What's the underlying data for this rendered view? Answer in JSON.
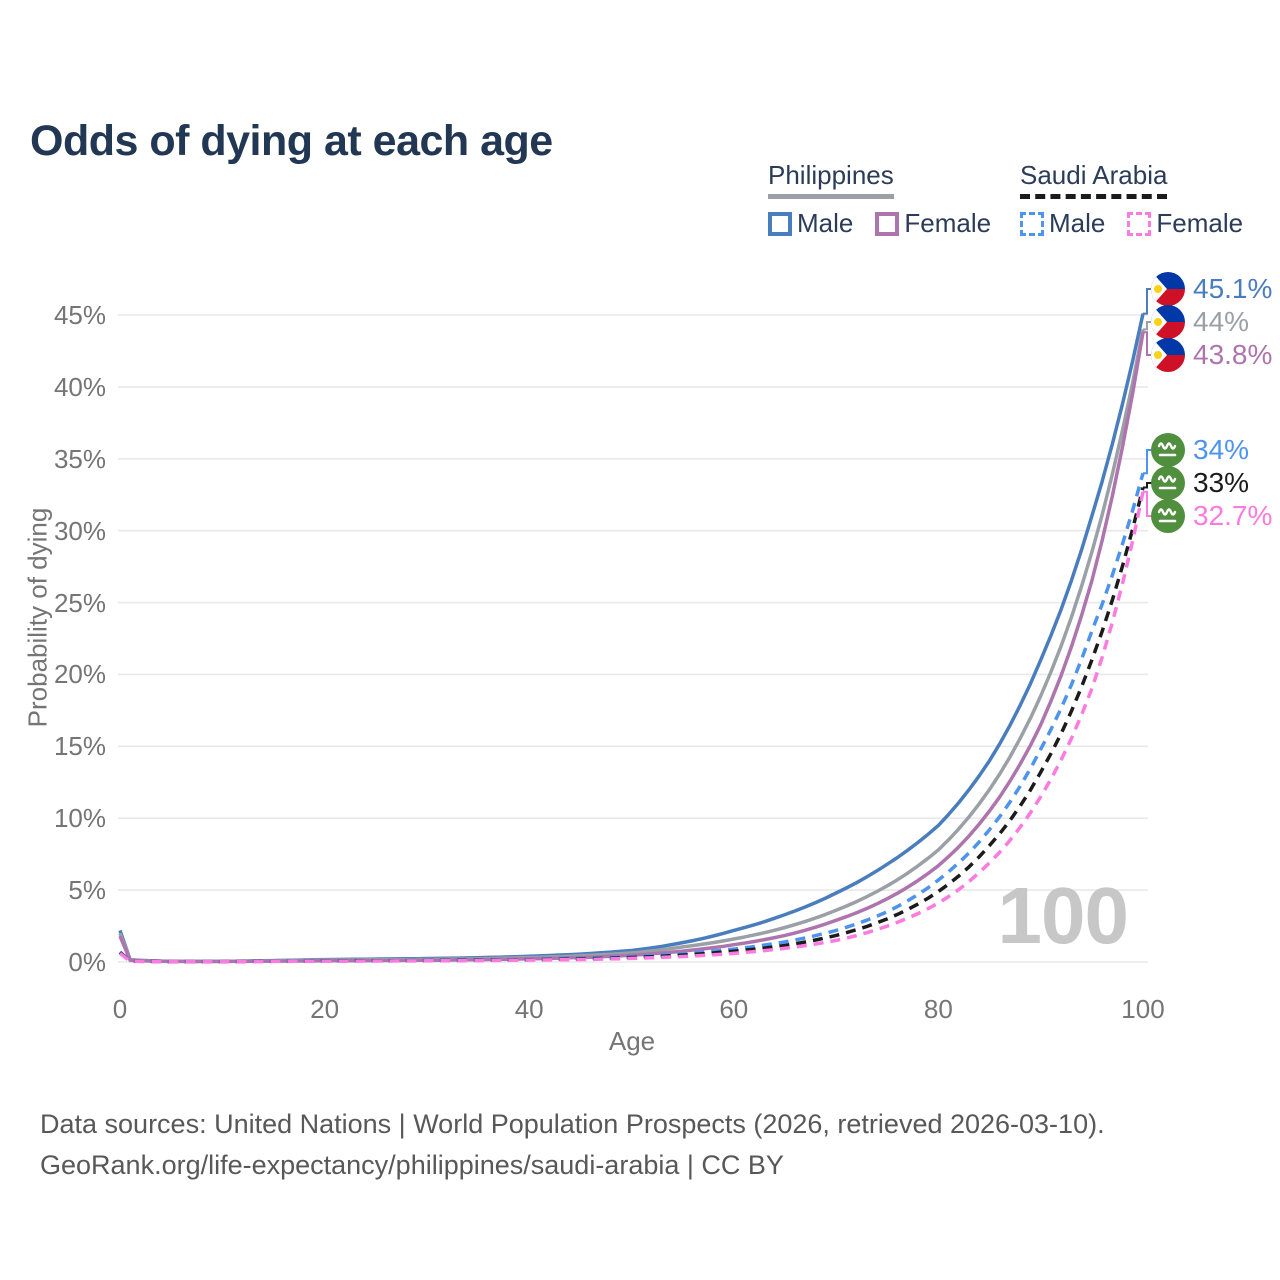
{
  "title": "Odds of dying at each age",
  "legend": {
    "groups": [
      {
        "country": "Philippines",
        "line_style": "solid",
        "underline_color": "#9aa0a6",
        "items": [
          {
            "label": "Male",
            "color": "#4a7dbe",
            "dashed": false
          },
          {
            "label": "Female",
            "color": "#ae74ae",
            "dashed": false
          }
        ]
      },
      {
        "country": "Saudi Arabia",
        "line_style": "dashed",
        "underline_color": "#1b1b1b",
        "items": [
          {
            "label": "Male",
            "color": "#4e93ee",
            "dashed": true
          },
          {
            "label": "Female",
            "color": "#fb7be0",
            "dashed": true
          }
        ]
      }
    ]
  },
  "chart_data": {
    "type": "line",
    "title": "Odds of dying at each age",
    "xlabel": "Age",
    "ylabel": "Probability of dying",
    "x": [
      0,
      1,
      5,
      10,
      15,
      20,
      25,
      30,
      35,
      40,
      45,
      50,
      55,
      60,
      65,
      70,
      75,
      80,
      85,
      90,
      95,
      100
    ],
    "xlim": [
      0,
      100
    ],
    "ylim": [
      0,
      45
    ],
    "xticks": [
      0,
      20,
      40,
      60,
      80,
      100
    ],
    "yticks": [
      0,
      5,
      10,
      15,
      20,
      25,
      30,
      35,
      40,
      45
    ],
    "ytick_suffix": "%",
    "grid": true,
    "legend_position": "top-right",
    "age_indicator": "100",
    "series": [
      {
        "name": "Philippines Male",
        "country": "Philippines",
        "sex": "Male",
        "color": "#4a7dbe",
        "dashed": false,
        "flag": "ph",
        "end_label": "45.1%",
        "end_value": 45.1,
        "values": [
          2.2,
          0.15,
          0.05,
          0.05,
          0.1,
          0.17,
          0.2,
          0.24,
          0.3,
          0.4,
          0.55,
          0.8,
          1.35,
          2.2,
          3.3,
          4.8,
          6.8,
          9.5,
          14.0,
          21.0,
          31.0,
          45.1
        ]
      },
      {
        "name": "Philippines",
        "country": "Philippines",
        "sex": "Both",
        "color": "#9aa0a6",
        "dashed": false,
        "flag": "ph",
        "end_label": "44%",
        "end_value": 44,
        "values": [
          2.0,
          0.13,
          0.045,
          0.04,
          0.08,
          0.13,
          0.15,
          0.18,
          0.23,
          0.31,
          0.43,
          0.63,
          1.05,
          1.6,
          2.4,
          3.6,
          5.3,
          7.8,
          12.0,
          18.5,
          28.5,
          44.0
        ]
      },
      {
        "name": "Philippines Female",
        "country": "Philippines",
        "sex": "Female",
        "color": "#ae74ae",
        "dashed": false,
        "flag": "ph",
        "end_label": "43.8%",
        "end_value": 43.8,
        "values": [
          1.8,
          0.11,
          0.04,
          0.035,
          0.06,
          0.08,
          0.1,
          0.12,
          0.16,
          0.22,
          0.31,
          0.47,
          0.76,
          1.2,
          1.85,
          2.9,
          4.4,
          6.7,
          10.5,
          16.5,
          26.5,
          43.8
        ]
      },
      {
        "name": "Saudi Arabia Male",
        "country": "Saudi Arabia",
        "sex": "Male",
        "color": "#4e93ee",
        "dashed": true,
        "flag": "sa",
        "end_label": "34%",
        "end_value": 34,
        "values": [
          0.7,
          0.06,
          0.03,
          0.03,
          0.06,
          0.09,
          0.1,
          0.12,
          0.14,
          0.18,
          0.25,
          0.37,
          0.58,
          0.9,
          1.4,
          2.2,
          3.5,
          5.7,
          9.2,
          14.8,
          23.0,
          34.0
        ]
      },
      {
        "name": "Saudi Arabia",
        "country": "Saudi Arabia",
        "sex": "Both",
        "color": "#1b1b1b",
        "dashed": true,
        "flag": "sa",
        "end_label": "33%",
        "end_value": 33,
        "values": [
          0.65,
          0.055,
          0.028,
          0.028,
          0.05,
          0.075,
          0.085,
          0.1,
          0.12,
          0.15,
          0.21,
          0.31,
          0.48,
          0.75,
          1.15,
          1.85,
          3.0,
          4.9,
          8.1,
          13.2,
          21.0,
          33.0
        ]
      },
      {
        "name": "Saudi Arabia Female",
        "country": "Saudi Arabia",
        "sex": "Female",
        "color": "#fb7be0",
        "dashed": true,
        "flag": "sa",
        "end_label": "32.7%",
        "end_value": 32.7,
        "values": [
          0.6,
          0.05,
          0.025,
          0.025,
          0.04,
          0.06,
          0.07,
          0.08,
          0.1,
          0.13,
          0.17,
          0.25,
          0.38,
          0.6,
          0.95,
          1.5,
          2.5,
          4.1,
          6.9,
          11.5,
          19.0,
          32.7
        ]
      }
    ]
  },
  "footer": {
    "line1": "Data sources: United Nations | World Population Prospects (2026, retrieved 2026-03-10).",
    "line2": "GeoRank.org/life-expectancy/philippines/saudi-arabia | CC BY"
  }
}
